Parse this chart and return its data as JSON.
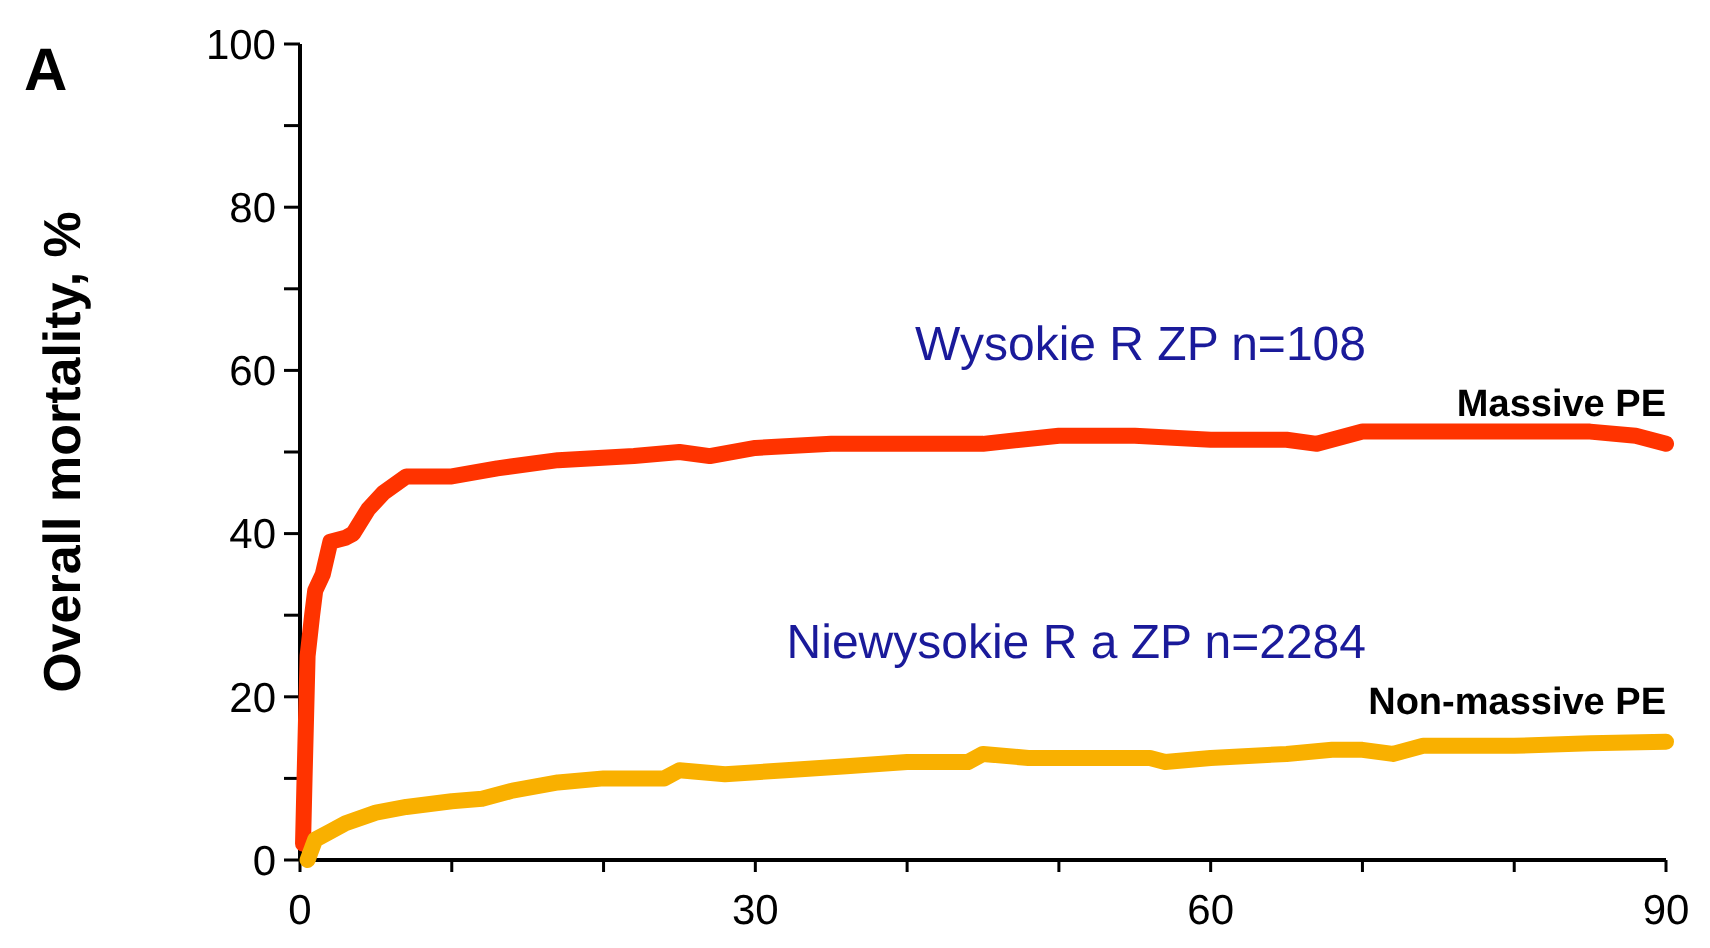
{
  "chart_data": {
    "type": "line",
    "title": "A",
    "ylabel": "Overall mortality, %",
    "xlim": [
      0,
      90
    ],
    "xticks": [
      0,
      {
        "value": 10,
        "label": null
      },
      {
        "value": 20,
        "label": null
      },
      30,
      {
        "value": 40,
        "label": null
      },
      {
        "value": 50,
        "label": null
      },
      60,
      {
        "value": 70,
        "label": null
      },
      {
        "value": 80,
        "label": null
      },
      90
    ],
    "ylim": [
      0,
      100
    ],
    "yticks": [
      0,
      {
        "value": 10,
        "label": null
      },
      20,
      {
        "value": 30,
        "label": null
      },
      40,
      {
        "value": 50,
        "label": null
      },
      60,
      {
        "value": 70,
        "label": null
      },
      80,
      {
        "value": 90,
        "label": null
      },
      100
    ],
    "marker": "none",
    "line_style": "solid",
    "grid": false,
    "series": [
      {
        "name": "Massive PE",
        "color": "#ff3300",
        "x": [
          0.2,
          0.3,
          0.5,
          0.8,
          1,
          1.5,
          2,
          3,
          3.5,
          4.5,
          5.5,
          7,
          10,
          13,
          17,
          22,
          25,
          27,
          30,
          35,
          40,
          45,
          50,
          55,
          60,
          65,
          67,
          70,
          75,
          80,
          85,
          88,
          90
        ],
        "values": [
          2,
          10,
          25,
          30,
          33,
          35,
          39,
          39.5,
          40,
          43,
          45,
          47,
          47,
          48,
          49,
          49.5,
          50,
          49.5,
          50.5,
          51,
          51,
          51,
          52,
          52,
          51.5,
          51.5,
          51,
          52.5,
          52.5,
          52.5,
          52.5,
          52,
          51
        ]
      },
      {
        "name": "Non-massive PE",
        "color": "#f9b000",
        "x": [
          0.5,
          1,
          2,
          3,
          5,
          7,
          10,
          12,
          14,
          17,
          20,
          23,
          24,
          25,
          28,
          32,
          36,
          40,
          44,
          45,
          48,
          52,
          56,
          57,
          60,
          65,
          68,
          70,
          72,
          74,
          77,
          80,
          85,
          90
        ],
        "values": [
          0,
          2.5,
          3.5,
          4.5,
          5.8,
          6.5,
          7.2,
          7.5,
          8.5,
          9.5,
          10,
          10,
          10,
          11,
          10.5,
          11,
          11.5,
          12,
          12,
          13,
          12.5,
          12.5,
          12.5,
          12,
          12.5,
          13,
          13.5,
          13.5,
          13,
          14,
          14,
          14,
          14.3,
          14.5
        ]
      }
    ],
    "annotations": [
      "Wysokie R ZP n=108",
      "Niewysokie R a ZP  n=2284"
    ]
  }
}
